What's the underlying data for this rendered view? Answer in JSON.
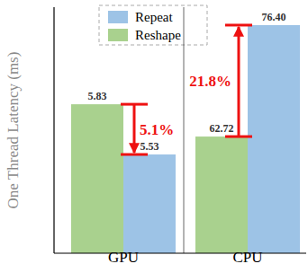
{
  "chart_data": [
    {
      "type": "bar",
      "y_label": "One Thread Latency (ms)",
      "categories": [
        "GPU"
      ],
      "series": [
        {
          "name": "Reshape",
          "color": "#a9d18e",
          "values": [
            5.83
          ]
        },
        {
          "name": "Repeat",
          "color": "#9dc3e6",
          "values": [
            5.53
          ]
        }
      ],
      "ylim": [
        4.94,
        6.41
      ],
      "tick_labels": "x",
      "data_labels": true,
      "legend": "top",
      "annotations": [
        "5.1%"
      ]
    },
    {
      "type": "bar",
      "categories": [
        "CPU"
      ],
      "series": [
        {
          "color": "#a9d18e",
          "values": [
            62.72
          ]
        },
        {
          "color": "#9dc3e6",
          "values": [
            76.4
          ],
          "value_labels": [
            "76.40"
          ]
        }
      ],
      "ylim": [
        48.4,
        78.6
      ],
      "tick_labels": "x",
      "data_labels": true,
      "annotations": [
        "21.8%"
      ]
    }
  ]
}
